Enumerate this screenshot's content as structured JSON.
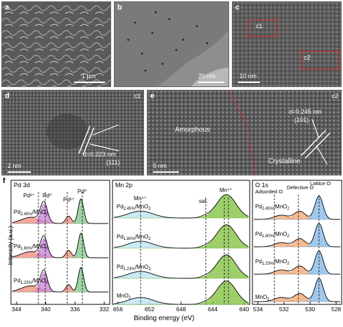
{
  "panels": {
    "a": {
      "label": "a",
      "scale": "1 µm"
    },
    "b": {
      "label": "b",
      "scale": "20 nm"
    },
    "c": {
      "label": "c",
      "scale": "10 nm",
      "boxes": [
        "c1",
        "c2"
      ]
    },
    "d": {
      "label": "d",
      "corner": "c1",
      "scale": "2 nm",
      "spacing": "d=0.223 nm",
      "plane": "(111)"
    },
    "e": {
      "label": "e",
      "corner": "c2",
      "scale": "5 nm",
      "spacing": "d=0.245 nm",
      "plane": "(101)",
      "amorphous": "Amorphous",
      "crystalline": "Crystalline"
    }
  },
  "figure_f": {
    "label": "f",
    "ylabel": "Intensity (a.u.)",
    "xlabel": "Binding energy (eV)",
    "subpanels": [
      {
        "title": "Pd 3d",
        "ticks": [
          "344",
          "340",
          "336",
          "332"
        ],
        "peak_labels": [
          "Pd²⁺",
          "Pd⁰",
          "Pd²⁺",
          "Pd⁰"
        ],
        "samples": [
          "Pd2.45%/MnO2",
          "Pd1.80%/MnO2",
          "Pd1.23%/MnO2"
        ]
      },
      {
        "title": "Mn 2p",
        "ticks": [
          "656",
          "652",
          "648",
          "644",
          "640"
        ],
        "peak_labels": [
          "Mn⁴⁺",
          "sat.",
          "Mn⁴⁺"
        ],
        "samples": [
          "Pd2.45%/MnO2",
          "Pd1.80%/MnO2",
          "Pd1.23%/MnO2",
          "MnO2"
        ]
      },
      {
        "title": "O 1s",
        "ticks": [
          "534",
          "532",
          "530",
          "528"
        ],
        "peak_labels": [
          "Adsorded O",
          "Defective O",
          "Lattice O"
        ],
        "samples": [
          "Pd2.45%/MnO2",
          "Pd1.80%/MnO2",
          "Pd1.23%/MnO2",
          "MnO2"
        ]
      }
    ]
  },
  "colors": {
    "pd0": "#7cc58a",
    "pd2": "#c77fd6",
    "pdRed": "#f08a7a",
    "mnGreen": "#7dbf3a",
    "mnBlue": "#b9e3f2",
    "oOrange": "#f2a46e",
    "oBlue": "#7fb6e6"
  }
}
